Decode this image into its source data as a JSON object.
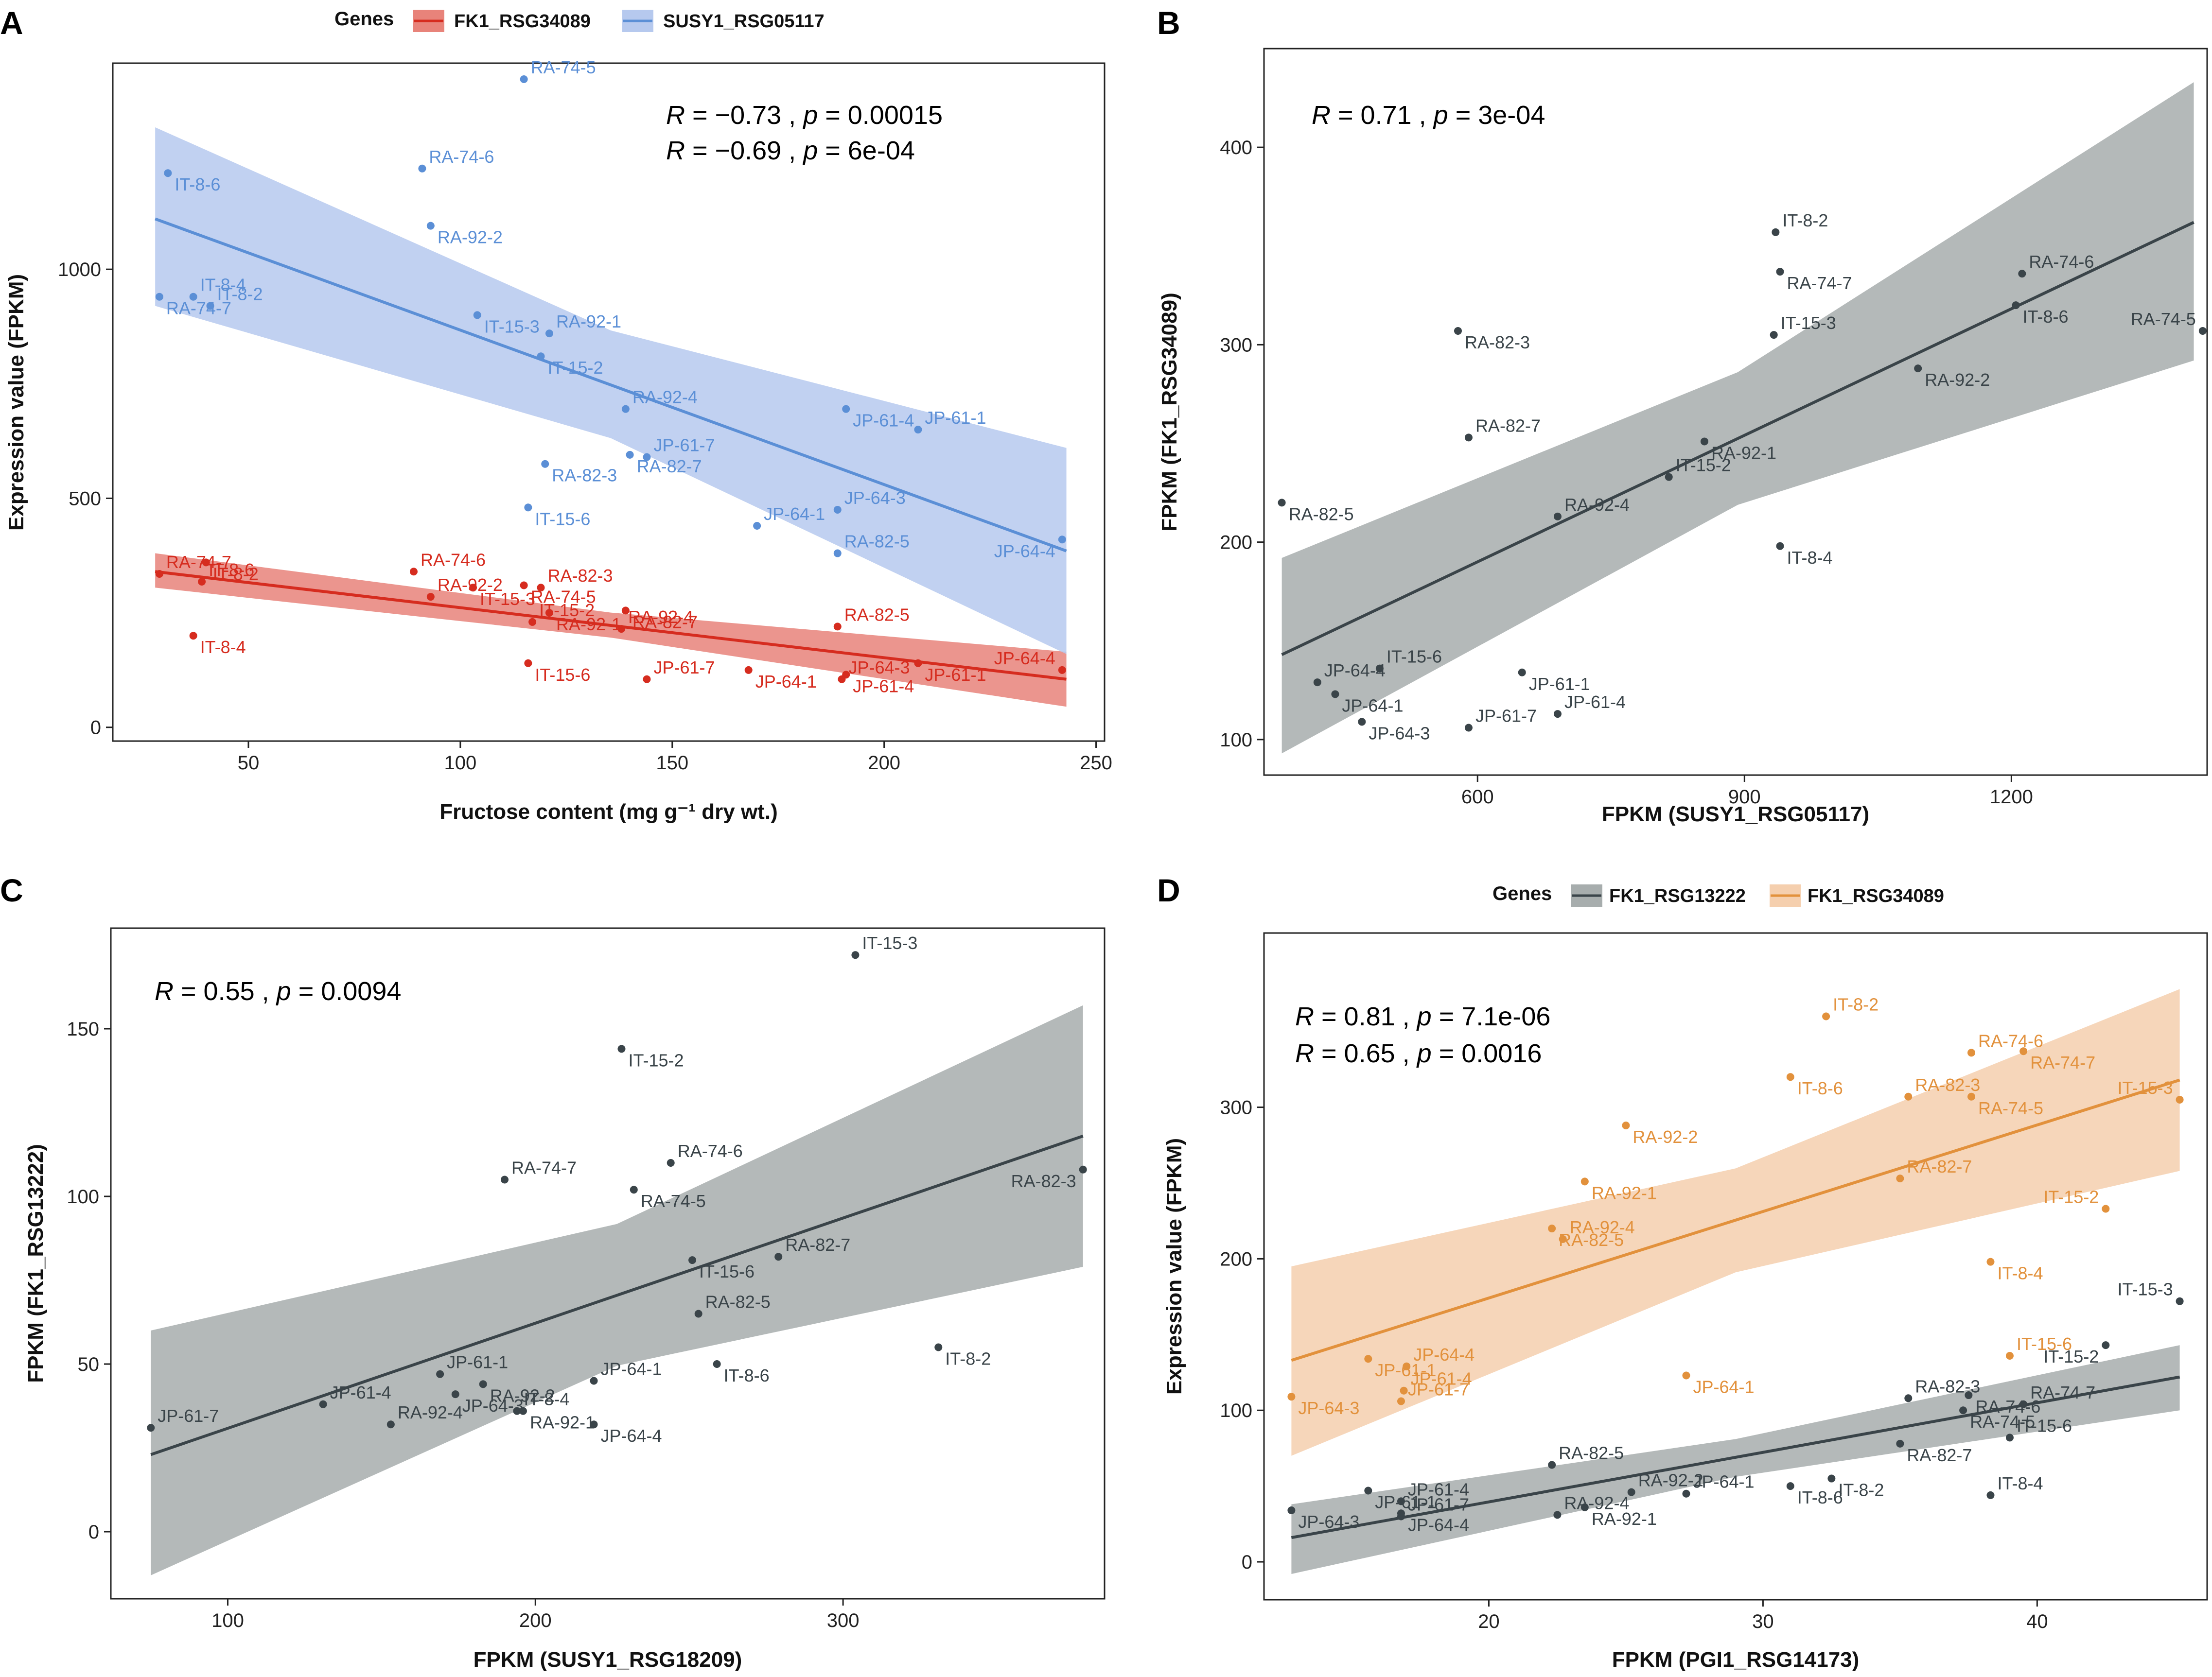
{
  "chart_data": [
    {
      "id": "A",
      "type": "scatter",
      "panel_label": "A",
      "xlabel": "Fructose content (mg g⁻¹ dry wt.)",
      "ylabel": "Expression value (FPKM)",
      "xlim": [
        18,
        252
      ],
      "ylim": [
        -30,
        1450
      ],
      "xticks": [
        50,
        100,
        150,
        200,
        250
      ],
      "yticks": [
        0,
        500,
        1000
      ],
      "legend": {
        "title": "Genes",
        "position": "top"
      },
      "stats": [
        {
          "text_R": "R",
          "text": " = −0.73 , ",
          "text_p": "p",
          "text2": " = 0.00015",
          "color": "#d62c1f"
        },
        {
          "text_R": "R",
          "text": " = −0.69 , ",
          "text_p": "p",
          "text2": " = 6e-04",
          "color": "#5b8fd6"
        }
      ],
      "series": [
        {
          "name": "FK1_RSG34089",
          "color": "#d62c1f",
          "band": "#e8837a",
          "fit": {
            "x0": 28,
            "y0": 340,
            "x1": 243,
            "y1": 105,
            "lo0": 305,
            "hi0": 380,
            "lo1": 45,
            "hi1": 165
          },
          "points": [
            {
              "label": "RA-74-7",
              "x": 29,
              "y": 335
            },
            {
              "label": "IT-8-2",
              "x": 40,
              "y": 360
            },
            {
              "label": "IT-8-6",
              "x": 39,
              "y": 318
            },
            {
              "label": "IT-8-4",
              "x": 37,
              "y": 200
            },
            {
              "label": "RA-74-6",
              "x": 89,
              "y": 340
            },
            {
              "label": "IT-15-3",
              "x": 103,
              "y": 305
            },
            {
              "label": "RA-92-2",
              "x": 93,
              "y": 285
            },
            {
              "label": "RA-74-5",
              "x": 115,
              "y": 310
            },
            {
              "label": "RA-82-3",
              "x": 119,
              "y": 305
            },
            {
              "label": "RA-92-1",
              "x": 121,
              "y": 250
            },
            {
              "label": "IT-15-2",
              "x": 117,
              "y": 230
            },
            {
              "label": "RA-82-7",
              "x": 139,
              "y": 255
            },
            {
              "label": "RA-92-4",
              "x": 138,
              "y": 215
            },
            {
              "label": "IT-15-6",
              "x": 116,
              "y": 140
            },
            {
              "label": "JP-61-7",
              "x": 144,
              "y": 105
            },
            {
              "label": "JP-64-1",
              "x": 168,
              "y": 125
            },
            {
              "label": "RA-82-5",
              "x": 189,
              "y": 220
            },
            {
              "label": "JP-61-4",
              "x": 191,
              "y": 115
            },
            {
              "label": "JP-64-3",
              "x": 190,
              "y": 105
            },
            {
              "label": "JP-61-1",
              "x": 208,
              "y": 140
            },
            {
              "label": "JP-64-4",
              "x": 242,
              "y": 125
            }
          ]
        },
        {
          "name": "SUSY1_RSG05117",
          "color": "#5b8fd6",
          "band": "#b6c9ee",
          "fit": {
            "x0": 28,
            "y0": 1110,
            "x1": 243,
            "y1": 385,
            "lo0": 920,
            "hi0": 1310,
            "lo1": 160,
            "hi1": 610
          },
          "points": [
            {
              "label": "RA-74-5",
              "x": 115,
              "y": 1415
            },
            {
              "label": "IT-8-6",
              "x": 31,
              "y": 1210
            },
            {
              "label": "RA-74-6",
              "x": 91,
              "y": 1220
            },
            {
              "label": "RA-92-2",
              "x": 93,
              "y": 1095
            },
            {
              "label": "IT-8-4",
              "x": 37,
              "y": 940
            },
            {
              "label": "RA-74-7",
              "x": 29,
              "y": 940
            },
            {
              "label": "IT-8-2",
              "x": 41,
              "y": 920
            },
            {
              "label": "IT-15-3",
              "x": 104,
              "y": 900
            },
            {
              "label": "RA-92-1",
              "x": 121,
              "y": 860
            },
            {
              "label": "IT-15-2",
              "x": 119,
              "y": 810
            },
            {
              "label": "RA-92-4",
              "x": 139,
              "y": 695
            },
            {
              "label": "JP-61-4",
              "x": 191,
              "y": 695
            },
            {
              "label": "JP-61-1",
              "x": 208,
              "y": 650
            },
            {
              "label": "RA-82-7",
              "x": 140,
              "y": 595
            },
            {
              "label": "JP-61-7",
              "x": 144,
              "y": 590
            },
            {
              "label": "RA-82-3",
              "x": 120,
              "y": 575
            },
            {
              "label": "JP-64-3",
              "x": 189,
              "y": 475
            },
            {
              "label": "IT-15-6",
              "x": 116,
              "y": 480
            },
            {
              "label": "JP-64-1",
              "x": 170,
              "y": 440
            },
            {
              "label": "JP-64-4",
              "x": 242,
              "y": 410
            },
            {
              "label": "RA-82-5",
              "x": 189,
              "y": 380
            }
          ]
        }
      ]
    },
    {
      "id": "B",
      "type": "scatter",
      "panel_label": "B",
      "xlabel": "FPKM (SUSY1_RSG05117)",
      "ylabel": "FPKM (FK1_RSG34089)",
      "xlim": [
        360,
        1420
      ],
      "ylim": [
        82,
        450
      ],
      "xticks": [
        600,
        900,
        1200
      ],
      "yticks": [
        100,
        200,
        300,
        400
      ],
      "stats": [
        {
          "text_R": "R",
          "text": " = 0.71 , ",
          "text_p": "p",
          "text2": " = 3e-04",
          "color": "#3a4449"
        }
      ],
      "series": [
        {
          "name": "FK1_RSG34089",
          "color": "#3a4449",
          "band": "#a7adad",
          "fit": {
            "x0": 380,
            "y0": 143,
            "x1": 1405,
            "y1": 362,
            "lo0": 93,
            "hi0": 192,
            "lo1": 292,
            "hi1": 433
          },
          "points": [
            {
              "label": "IT-8-2",
              "x": 935,
              "y": 357
            },
            {
              "label": "RA-74-7",
              "x": 940,
              "y": 337
            },
            {
              "label": "RA-74-6",
              "x": 1212,
              "y": 336
            },
            {
              "label": "IT-8-6",
              "x": 1205,
              "y": 320
            },
            {
              "label": "RA-74-5",
              "x": 1415,
              "y": 307
            },
            {
              "label": "RA-82-3",
              "x": 578,
              "y": 307
            },
            {
              "label": "IT-15-3",
              "x": 933,
              "y": 305
            },
            {
              "label": "RA-92-2",
              "x": 1095,
              "y": 288
            },
            {
              "label": "RA-82-7",
              "x": 590,
              "y": 253
            },
            {
              "label": "RA-92-1",
              "x": 855,
              "y": 251
            },
            {
              "label": "IT-15-2",
              "x": 815,
              "y": 233
            },
            {
              "label": "RA-82-5",
              "x": 380,
              "y": 220
            },
            {
              "label": "RA-92-4",
              "x": 690,
              "y": 213
            },
            {
              "label": "IT-8-4",
              "x": 940,
              "y": 198
            },
            {
              "label": "IT-15-6",
              "x": 490,
              "y": 136
            },
            {
              "label": "JP-61-1",
              "x": 650,
              "y": 134
            },
            {
              "label": "JP-64-4",
              "x": 420,
              "y": 129
            },
            {
              "label": "JP-64-1",
              "x": 440,
              "y": 123
            },
            {
              "label": "JP-61-4",
              "x": 690,
              "y": 113
            },
            {
              "label": "JP-64-3",
              "x": 470,
              "y": 109
            },
            {
              "label": "JP-61-7",
              "x": 590,
              "y": 106
            }
          ]
        }
      ]
    },
    {
      "id": "C",
      "type": "scatter",
      "panel_label": "C",
      "xlabel": "FPKM (SUSY1_RSG18209)",
      "ylabel": "FPKM (FK1_RSG13222)",
      "xlim": [
        62,
        385
      ],
      "ylim": [
        -20,
        180
      ],
      "xticks": [
        100,
        200,
        300
      ],
      "yticks": [
        0,
        50,
        100,
        150
      ],
      "stats": [
        {
          "text_R": "R",
          "text": " = 0.55 , ",
          "text_p": "p",
          "text2": " = 0.0094",
          "color": "#3a4449"
        }
      ],
      "series": [
        {
          "name": "FK1_RSG13222",
          "color": "#3a4449",
          "band": "#a7adad",
          "fit": {
            "x0": 75,
            "y0": 23,
            "x1": 378,
            "y1": 118,
            "lo0": -13,
            "hi0": 60,
            "lo1": 79,
            "hi1": 157
          },
          "points": [
            {
              "label": "IT-15-3",
              "x": 304,
              "y": 172
            },
            {
              "label": "IT-15-2",
              "x": 228,
              "y": 144
            },
            {
              "label": "RA-74-6",
              "x": 244,
              "y": 110
            },
            {
              "label": "RA-82-3",
              "x": 378,
              "y": 108
            },
            {
              "label": "RA-74-7",
              "x": 190,
              "y": 105
            },
            {
              "label": "RA-74-5",
              "x": 232,
              "y": 102
            },
            {
              "label": "RA-82-7",
              "x": 279,
              "y": 82
            },
            {
              "label": "IT-15-6",
              "x": 251,
              "y": 81
            },
            {
              "label": "RA-82-5",
              "x": 253,
              "y": 65
            },
            {
              "label": "IT-8-2",
              "x": 331,
              "y": 55
            },
            {
              "label": "JP-61-1",
              "x": 169,
              "y": 47
            },
            {
              "label": "IT-8-6",
              "x": 259,
              "y": 50
            },
            {
              "label": "JP-64-1",
              "x": 219,
              "y": 45
            },
            {
              "label": "RA-92-2",
              "x": 183,
              "y": 44
            },
            {
              "label": "JP-61-4",
              "x": 131,
              "y": 38
            },
            {
              "label": "JP-64-3",
              "x": 174,
              "y": 41
            },
            {
              "label": "IT-8-4",
              "x": 194,
              "y": 36
            },
            {
              "label": "RA-92-1",
              "x": 196,
              "y": 36
            },
            {
              "label": "RA-92-4",
              "x": 153,
              "y": 32
            },
            {
              "label": "JP-64-4",
              "x": 219,
              "y": 32
            },
            {
              "label": "JP-61-7",
              "x": 75,
              "y": 31
            }
          ]
        }
      ]
    },
    {
      "id": "D",
      "type": "scatter",
      "panel_label": "D",
      "xlabel": "FPKM (PGI1_RSG14173)",
      "ylabel": "Expression value (FPKM)",
      "xlim": [
        11.8,
        46.2
      ],
      "ylim": [
        -25,
        415
      ],
      "xticks": [
        20,
        30,
        40
      ],
      "yticks": [
        0,
        100,
        200,
        300
      ],
      "legend": {
        "title": "Genes",
        "position": "top"
      },
      "stats": [
        {
          "text_R": "R",
          "text": " = 0.81 , ",
          "text_p": "p",
          "text2": " = 7.1e-06",
          "color": "#3a4449"
        },
        {
          "text_R": "R",
          "text": " = 0.65 , ",
          "text_p": "p",
          "text2": " = 0.0016",
          "color": "#e2913c"
        }
      ],
      "series": [
        {
          "name": "FK1_RSG13222",
          "color": "#3a4449",
          "band": "#a7adad",
          "fit": {
            "x0": 12.8,
            "y0": 16,
            "x1": 45.2,
            "y1": 122,
            "lo0": -8,
            "hi0": 38,
            "lo1": 100,
            "hi1": 143
          },
          "points": [
            {
              "label": "IT-15-3",
              "x": 45.2,
              "y": 172
            },
            {
              "label": "IT-15-2",
              "x": 42.5,
              "y": 143
            },
            {
              "label": "RA-82-3",
              "x": 35.3,
              "y": 108
            },
            {
              "label": "RA-74-6",
              "x": 37.5,
              "y": 110
            },
            {
              "label": "RA-74-7",
              "x": 39.5,
              "y": 104
            },
            {
              "label": "RA-74-5",
              "x": 37.3,
              "y": 100
            },
            {
              "label": "IT-15-6",
              "x": 39.0,
              "y": 82
            },
            {
              "label": "RA-82-7",
              "x": 35.0,
              "y": 78
            },
            {
              "label": "RA-82-5",
              "x": 22.3,
              "y": 64
            },
            {
              "label": "IT-8-2",
              "x": 32.5,
              "y": 55
            },
            {
              "label": "RA-92-2",
              "x": 25.2,
              "y": 46
            },
            {
              "label": "IT-8-6",
              "x": 31.0,
              "y": 50
            },
            {
              "label": "JP-64-1",
              "x": 27.2,
              "y": 45
            },
            {
              "label": "JP-61-1",
              "x": 15.6,
              "y": 47
            },
            {
              "label": "JP-61-4",
              "x": 16.8,
              "y": 40
            },
            {
              "label": "RA-92-1",
              "x": 23.5,
              "y": 36
            },
            {
              "label": "IT-8-4",
              "x": 38.3,
              "y": 44
            },
            {
              "label": "JP-64-4",
              "x": 16.8,
              "y": 32
            },
            {
              "label": "RA-92-4",
              "x": 22.5,
              "y": 31
            },
            {
              "label": "JP-64-3",
              "x": 12.8,
              "y": 34
            },
            {
              "label": "JP-61-7",
              "x": 16.8,
              "y": 30
            }
          ]
        },
        {
          "name": "FK1_RSG34089",
          "color": "#e2913c",
          "band": "#f5cfae",
          "fit": {
            "x0": 12.8,
            "y0": 133,
            "x1": 45.2,
            "y1": 318,
            "lo0": 70,
            "hi0": 195,
            "lo1": 258,
            "hi1": 378
          },
          "points": [
            {
              "label": "IT-8-2",
              "x": 32.3,
              "y": 360
            },
            {
              "label": "RA-74-7",
              "x": 39.5,
              "y": 337
            },
            {
              "label": "RA-74-6",
              "x": 37.6,
              "y": 336
            },
            {
              "label": "IT-8-6",
              "x": 31.0,
              "y": 320
            },
            {
              "label": "RA-82-3",
              "x": 35.3,
              "y": 307
            },
            {
              "label": "RA-74-5",
              "x": 37.6,
              "y": 307
            },
            {
              "label": "IT-15-3",
              "x": 45.2,
              "y": 305
            },
            {
              "label": "RA-92-2",
              "x": 25.0,
              "y": 288
            },
            {
              "label": "RA-82-7",
              "x": 35.0,
              "y": 253
            },
            {
              "label": "RA-92-1",
              "x": 23.5,
              "y": 251
            },
            {
              "label": "IT-15-2",
              "x": 42.5,
              "y": 233
            },
            {
              "label": "RA-82-5",
              "x": 22.3,
              "y": 220
            },
            {
              "label": "RA-92-4",
              "x": 22.7,
              "y": 213
            },
            {
              "label": "IT-8-4",
              "x": 38.3,
              "y": 198
            },
            {
              "label": "IT-15-6",
              "x": 39.0,
              "y": 136
            },
            {
              "label": "JP-61-1",
              "x": 15.6,
              "y": 134
            },
            {
              "label": "JP-64-4",
              "x": 17.0,
              "y": 129
            },
            {
              "label": "JP-64-1",
              "x": 27.2,
              "y": 123
            },
            {
              "label": "JP-61-4",
              "x": 16.9,
              "y": 113
            },
            {
              "label": "JP-64-3",
              "x": 12.8,
              "y": 109
            },
            {
              "label": "JP-61-7",
              "x": 16.8,
              "y": 106
            }
          ]
        }
      ]
    }
  ]
}
